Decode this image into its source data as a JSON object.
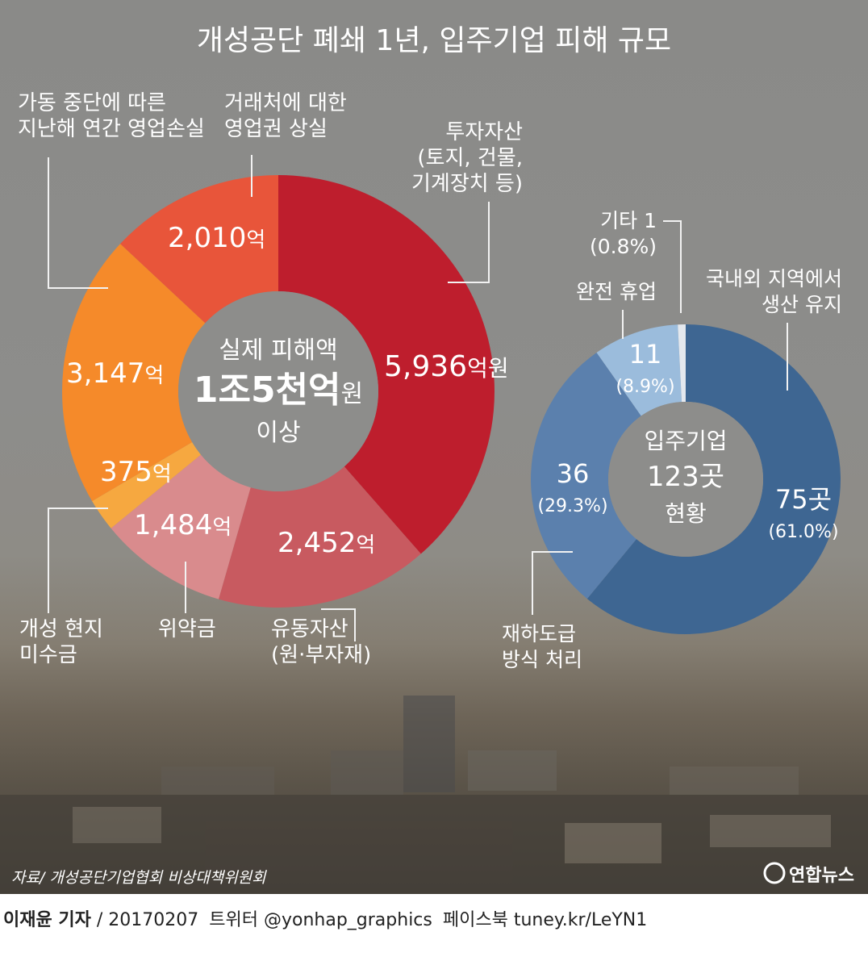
{
  "title": "개성공단 폐쇄 1년, 입주기업 피해 규모",
  "colors": {
    "background": "#8c8c8a",
    "line": "#f4f4f4",
    "text": "#ffffff",
    "center_fill": "#8d8d8b"
  },
  "chart_data": [
    {
      "type": "pie",
      "variant": "donut",
      "center_label": {
        "line1": "실제 피해액",
        "line2_main": "1조5천억",
        "line2_unit": "원",
        "line3": "이상"
      },
      "slices": [
        {
          "label": "투자자산\n(토지, 건물,\n기계장치 등)",
          "value": 5936,
          "value_label": "5,936",
          "unit_label": "억원",
          "color": "#be1e2d"
        },
        {
          "label": "유동자산\n(원·부자재)",
          "value": 2452,
          "value_label": "2,452",
          "unit_label": "억",
          "color": "#c85a60"
        },
        {
          "label": "위약금",
          "value": 1484,
          "value_label": "1,484",
          "unit_label": "억",
          "color": "#d98b8d"
        },
        {
          "label": "개성 현지\n미수금",
          "value": 375,
          "value_label": "375",
          "unit_label": "억",
          "color": "#f6a840"
        },
        {
          "label": "가동 중단에 따른\n지난해 연간 영업손실",
          "value": 3147,
          "value_label": "3,147",
          "unit_label": "억",
          "color": "#f58a2a"
        },
        {
          "label": "거래처에 대한\n영업권 상실",
          "value": 2010,
          "value_label": "2,010",
          "unit_label": "억",
          "color": "#e8553a"
        }
      ]
    },
    {
      "type": "pie",
      "variant": "donut",
      "center_label": {
        "line1": "입주기업",
        "line2": "123곳",
        "line3": "현황"
      },
      "slices": [
        {
          "label": "국내외 지역에서\n생산 유지",
          "value": 75,
          "value_label": "75곳",
          "pct_label": "(61.0%)",
          "color": "#3e6692"
        },
        {
          "label": "재하도급\n방식 처리",
          "value": 36,
          "value_label": "36",
          "pct_label": "(29.3%)",
          "color": "#5b80ad"
        },
        {
          "label": "완전 휴업",
          "value": 11,
          "value_label": "11",
          "pct_label": "(8.9%)",
          "color": "#9bbcdc"
        },
        {
          "label": "기타 1\n(0.8%)",
          "value": 1,
          "color": "#e4e8ee"
        }
      ]
    }
  ],
  "source": "자료/ 개성공단기업협회 비상대책위원회",
  "logo": "연합뉴스",
  "footer": {
    "reporter": "이재윤 기자",
    "date": "/ 20170207",
    "twitter": "트위터 @yonhap_graphics",
    "facebook": "페이스북 tuney.kr/LeYN1"
  }
}
